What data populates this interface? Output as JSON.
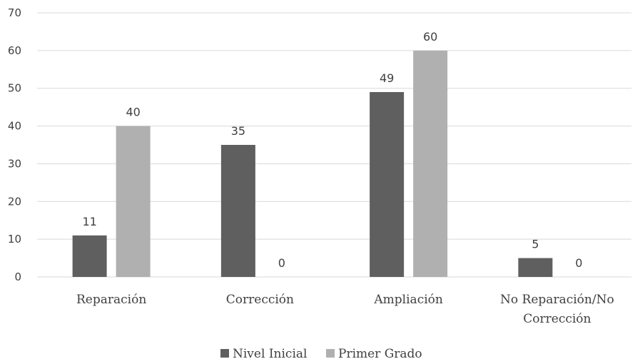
{
  "chart_data": {
    "type": "bar",
    "categories": [
      [
        "Reparación"
      ],
      [
        "Corrección"
      ],
      [
        "Ampliación"
      ],
      [
        "No Reparación/No",
        "Corrección"
      ]
    ],
    "series": [
      {
        "name": "Nivel Inicial",
        "values": [
          11,
          35,
          49,
          5
        ],
        "color": "#5f5f5f"
      },
      {
        "name": "Primer Grado",
        "values": [
          40,
          0,
          60,
          0
        ],
        "color": "#b0b0b0"
      }
    ],
    "ylim": [
      0,
      70
    ],
    "yticks": [
      0,
      10,
      20,
      30,
      40,
      50,
      60,
      70
    ],
    "grid": true,
    "legend_position": "bottom",
    "gridline_color": "#d9d9d9"
  }
}
